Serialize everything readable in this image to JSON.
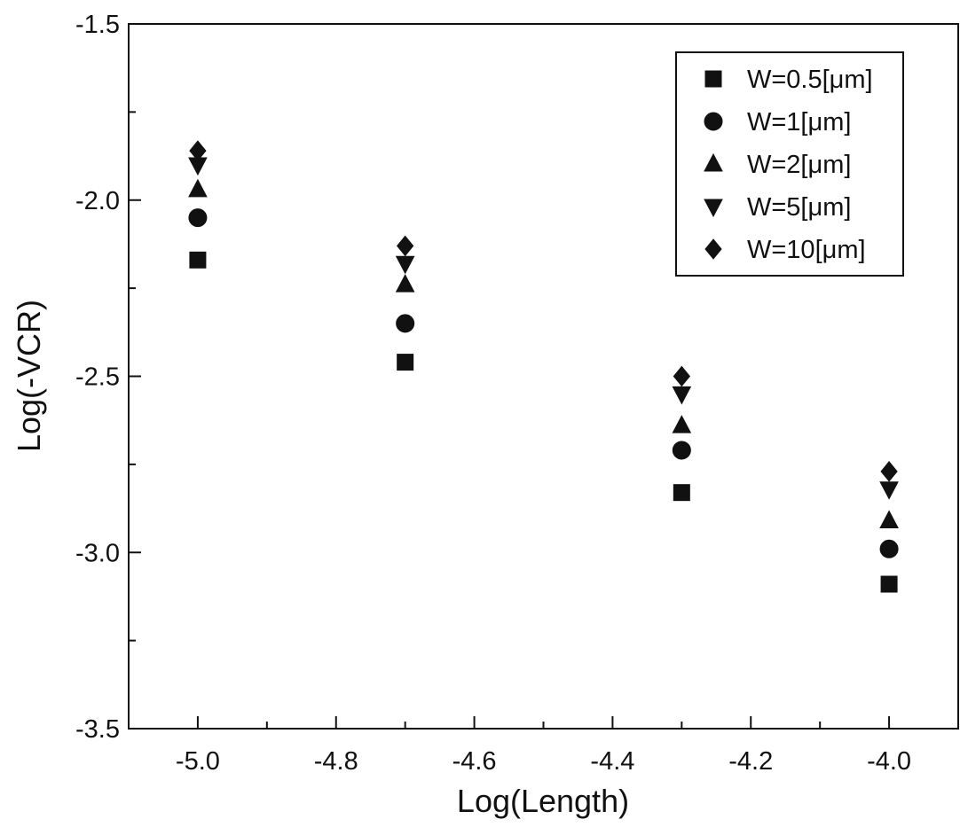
{
  "chart_data": {
    "type": "scatter",
    "title": "",
    "xlabel": "Log(Length)",
    "ylabel": "Log(-VCR)",
    "xlim": [
      -5.1,
      -3.9
    ],
    "ylim": [
      -3.5,
      -1.5
    ],
    "x_ticks": [
      -5.0,
      -4.8,
      -4.6,
      -4.4,
      -4.2,
      -4.0
    ],
    "x_tick_labels": [
      "-5.0",
      "-4.8",
      "-4.6",
      "-4.4",
      "-4.2",
      "-4.0"
    ],
    "y_ticks": [
      -1.5,
      -2.0,
      -2.5,
      -3.0,
      -3.5
    ],
    "y_tick_labels": [
      "-1.5",
      "-2.0",
      "-2.5",
      "-3.0",
      "-3.5"
    ],
    "grid": false,
    "legend_position": "top-right",
    "x": [
      -5.0,
      -4.7,
      -4.3,
      -4.0
    ],
    "series": [
      {
        "name": "W=0.5[μm]",
        "marker": "square",
        "values": [
          -2.17,
          -2.46,
          -2.83,
          -3.09
        ]
      },
      {
        "name": "W=1[μm]",
        "marker": "circle",
        "values": [
          -2.05,
          -2.35,
          -2.71,
          -2.99
        ]
      },
      {
        "name": "W=2[μm]",
        "marker": "triangle-up",
        "values": [
          -1.97,
          -2.24,
          -2.64,
          -2.91
        ]
      },
      {
        "name": "W=5[μm]",
        "marker": "triangle-down",
        "values": [
          -1.9,
          -2.18,
          -2.55,
          -2.82
        ]
      },
      {
        "name": "W=10[μm]",
        "marker": "diamond",
        "values": [
          -1.86,
          -2.13,
          -2.5,
          -2.77
        ]
      }
    ],
    "colors": {
      "marker": "#111111",
      "axis": "#111111",
      "background": "#ffffff"
    }
  }
}
